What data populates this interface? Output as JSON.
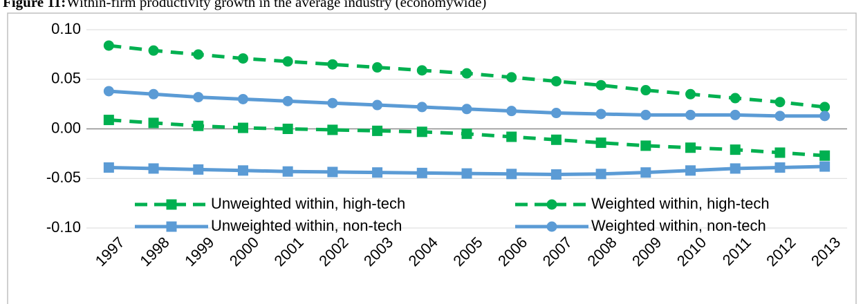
{
  "chart_data": {
    "type": "line",
    "figure_label": "Figure 11:",
    "title": "Within-firm productivity growth in the average industry (economywide)",
    "categories": [
      "1997",
      "1998",
      "1999",
      "2000",
      "2001",
      "2002",
      "2003",
      "2004",
      "2005",
      "2006",
      "2007",
      "2008",
      "2009",
      "2010",
      "2011",
      "2012",
      "2013"
    ],
    "series": [
      {
        "name": "Unweighted within, high-tech",
        "color": "#00b050",
        "dashed": true,
        "marker": "square",
        "values": [
          0.009,
          0.006,
          0.003,
          0.001,
          0.0,
          -0.001,
          -0.002,
          -0.003,
          -0.005,
          -0.008,
          -0.011,
          -0.014,
          -0.017,
          -0.019,
          -0.021,
          -0.024,
          -0.027
        ]
      },
      {
        "name": "Weighted within, high-tech",
        "color": "#00b050",
        "dashed": true,
        "marker": "circle",
        "values": [
          0.084,
          0.079,
          0.075,
          0.071,
          0.068,
          0.065,
          0.062,
          0.059,
          0.056,
          0.052,
          0.048,
          0.044,
          0.039,
          0.035,
          0.031,
          0.027,
          0.022
        ]
      },
      {
        "name": "Unweighted within, non-tech",
        "color": "#5b9bd5",
        "dashed": false,
        "marker": "square",
        "values": [
          -0.039,
          -0.04,
          -0.041,
          -0.042,
          -0.043,
          -0.0435,
          -0.044,
          -0.0445,
          -0.045,
          -0.0455,
          -0.046,
          -0.0455,
          -0.044,
          -0.042,
          -0.04,
          -0.039,
          -0.038
        ]
      },
      {
        "name": "Weighted within, non-tech",
        "color": "#5b9bd5",
        "dashed": false,
        "marker": "circle",
        "values": [
          0.038,
          0.035,
          0.032,
          0.03,
          0.028,
          0.026,
          0.024,
          0.022,
          0.02,
          0.018,
          0.016,
          0.015,
          0.014,
          0.014,
          0.014,
          0.013,
          0.013
        ]
      }
    ],
    "ylim": [
      -0.1,
      0.1
    ],
    "yticks": [
      {
        "value": 0.1,
        "label": "0.10"
      },
      {
        "value": 0.05,
        "label": "0.05"
      },
      {
        "value": 0,
        "label": "0.00"
      },
      {
        "value": -0.05,
        "label": "-0.05"
      },
      {
        "value": -0.1,
        "label": "-0.10"
      }
    ],
    "grid": true,
    "legend": "lower center"
  }
}
